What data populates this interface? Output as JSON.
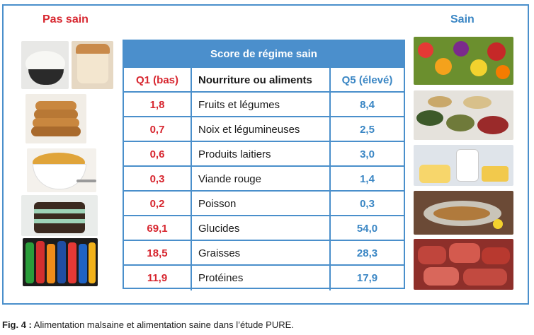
{
  "labels": {
    "bad": "Pas sain",
    "good": "Sain"
  },
  "table": {
    "title": "Score de régime sain",
    "headers": {
      "q1": "Q1 (bas)",
      "food": "Nourriture ou aliments",
      "q5": "Q5 (élevé)"
    },
    "rows": [
      {
        "q1": "1,8",
        "food": "Fruits et légumes",
        "q5": "8,4"
      },
      {
        "q1": "0,7",
        "food": "Noix et légumineuses",
        "q5": "2,5"
      },
      {
        "q1": "0,6",
        "food": "Produits laitiers",
        "q5": "3,0"
      },
      {
        "q1": "0,3",
        "food": "Viande rouge",
        "q5": "1,4"
      },
      {
        "q1": "0,2",
        "food": "Poisson",
        "q5": "0,3"
      },
      {
        "q1": "69,1",
        "food": "Glucides",
        "q5": "54,0"
      },
      {
        "q1": "18,5",
        "food": "Graisses",
        "q5": "28,3"
      },
      {
        "q1": "11,9",
        "food": "Protéines",
        "q5": "17,9"
      }
    ]
  },
  "caption": {
    "prefix": "Fig. 4 :",
    "text": " Alimentation malsaine et alimentation saine dans l’étude PURE."
  },
  "colors": {
    "accent": "#4a8fcb",
    "bad": "#d7262f",
    "good": "#3a86c4"
  }
}
